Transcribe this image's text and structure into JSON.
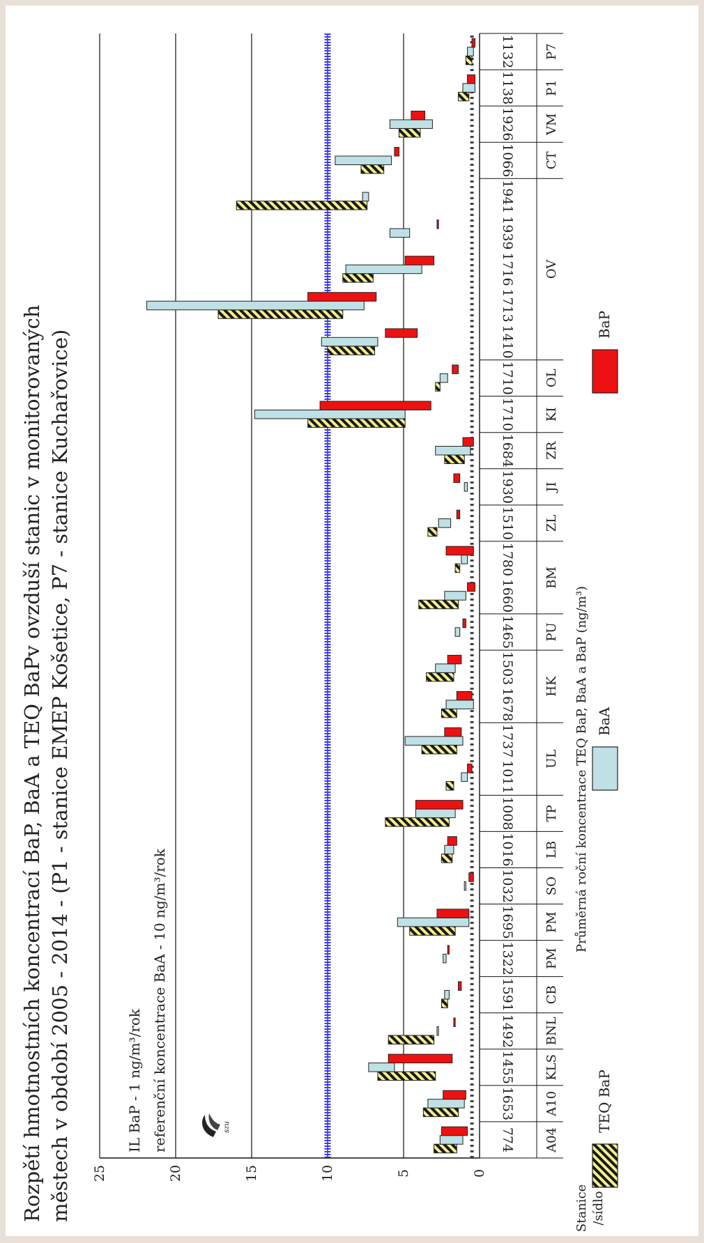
{
  "chart_data": {
    "type": "bar",
    "title_line1": "Rozpětí hmotnostních koncentrací BaP, BaA a TEQ BaPv ovzduší stanic v monitorovaných",
    "title_line2": "městech v období 2005 - 2014 - (P1 - stanice EMEP Košetice, P7 - stanice Kuchařovice)",
    "ylabel": "Průměrná roční koncentrace TEQ BaP, BaA a BaP (ng/m³)",
    "xlabel": "Stanice /sídlo",
    "xlabel_line1": "Stanice",
    "xlabel_line2": "/sídlo",
    "ylim": [
      0,
      25
    ],
    "y_ticks": [
      "0",
      "5",
      "10",
      "15",
      "20",
      "25"
    ],
    "grid": true,
    "annotations": {
      "il_bap": "IL BaP - 1  ng/m³/rok",
      "ref_baa": "referenční koncentrace BaA - 10 ng/m³/rok"
    },
    "reference_line_value": 10,
    "categories": [
      "774",
      "1653",
      "1455",
      "1492",
      "1591",
      "1322",
      "1695",
      "1032",
      "1016",
      "1008",
      "1011",
      "1737",
      "1678",
      "1503",
      "1465",
      "1660",
      "1780",
      "1510",
      "1930",
      "1684",
      "1710",
      "1710",
      "1410",
      "1713",
      "1716",
      "1939",
      "1941",
      "1066",
      "1926",
      "1138",
      "1132"
    ],
    "groups": [
      {
        "label": "A04",
        "from": 0,
        "to": 0
      },
      {
        "label": "A10",
        "from": 1,
        "to": 1
      },
      {
        "label": "KLS",
        "from": 2,
        "to": 2
      },
      {
        "label": "BNL",
        "from": 3,
        "to": 3
      },
      {
        "label": "CB",
        "from": 4,
        "to": 4
      },
      {
        "label": "PM",
        "from": 5,
        "to": 5
      },
      {
        "label": "PM",
        "from": 6,
        "to": 6
      },
      {
        "label": "SO",
        "from": 7,
        "to": 7
      },
      {
        "label": "LB",
        "from": 8,
        "to": 8
      },
      {
        "label": "TP",
        "from": 9,
        "to": 9
      },
      {
        "label": "UL",
        "from": 10,
        "to": 11
      },
      {
        "label": "HK",
        "from": 12,
        "to": 13
      },
      {
        "label": "PU",
        "from": 14,
        "to": 14
      },
      {
        "label": "BM",
        "from": 15,
        "to": 16
      },
      {
        "label": "ZL",
        "from": 17,
        "to": 17
      },
      {
        "label": "JI",
        "from": 18,
        "to": 18
      },
      {
        "label": "ZR",
        "from": 19,
        "to": 19
      },
      {
        "label": "KI",
        "from": 20,
        "to": 20
      },
      {
        "label": "OL",
        "from": 21,
        "to": 21
      },
      {
        "label": "OV",
        "from": 22,
        "to": 26
      },
      {
        "label": "CT",
        "from": 27,
        "to": 27
      },
      {
        "label": "VM",
        "from": 28,
        "to": 28
      },
      {
        "label": "P1",
        "from": 29,
        "to": 29
      },
      {
        "label": "P7",
        "from": 30,
        "to": 30
      }
    ],
    "series": [
      {
        "name": "TEQ BaP",
        "color": "#f5f08c",
        "pattern": "hatched",
        "ranges": [
          [
            1.5,
            3.0
          ],
          [
            1.4,
            3.7
          ],
          [
            2.9,
            6.7
          ],
          [
            3.0,
            6.0
          ],
          [
            2.1,
            2.5
          ],
          null,
          [
            1.6,
            4.6
          ],
          null,
          [
            1.8,
            2.5
          ],
          [
            2.0,
            6.2
          ],
          [
            1.7,
            2.2
          ],
          [
            1.5,
            3.8
          ],
          [
            1.5,
            2.5
          ],
          [
            1.7,
            3.5
          ],
          null,
          [
            1.4,
            4.0
          ],
          [
            1.3,
            1.6
          ],
          [
            2.8,
            3.4
          ],
          null,
          [
            1.0,
            2.3
          ],
          [
            4.9,
            11.3
          ],
          [
            2.6,
            2.9
          ],
          [
            6.9,
            10.0
          ],
          [
            9.0,
            17.2
          ],
          [
            7.0,
            9.0
          ],
          null,
          [
            7.4,
            16.0
          ],
          [
            6.3,
            7.8
          ],
          [
            3.9,
            5.3
          ],
          [
            0.7,
            1.4
          ],
          [
            0.5,
            0.9
          ]
        ]
      },
      {
        "name": "BaA",
        "color": "#bfe0e4",
        "pattern": "solid",
        "ranges": [
          [
            1.1,
            2.6
          ],
          [
            1.0,
            3.4
          ],
          [
            5.6,
            7.3
          ],
          [
            2.7,
            2.8
          ],
          [
            2.0,
            2.3
          ],
          [
            2.2,
            2.4
          ],
          [
            0.7,
            5.4
          ],
          [
            0.9,
            1.0
          ],
          [
            1.7,
            2.3
          ],
          [
            1.6,
            4.2
          ],
          [
            0.8,
            1.2
          ],
          [
            1.1,
            4.9
          ],
          [
            0.4,
            2.2
          ],
          [
            1.6,
            2.9
          ],
          [
            1.3,
            1.6
          ],
          [
            0.9,
            2.3
          ],
          [
            0.8,
            1.2
          ],
          [
            1.9,
            2.7
          ],
          [
            0.8,
            1.0
          ],
          [
            0.6,
            2.9
          ],
          [
            4.9,
            14.8
          ],
          [
            2.1,
            2.6
          ],
          [
            6.7,
            10.4
          ],
          [
            7.6,
            21.9
          ],
          [
            3.8,
            8.8
          ],
          [
            4.6,
            5.9
          ],
          [
            7.3,
            7.7
          ],
          [
            5.8,
            9.5
          ],
          [
            3.1,
            5.9
          ],
          [
            0.3,
            1.1
          ],
          [
            0.4,
            0.8
          ]
        ]
      },
      {
        "name": "BaP",
        "color": "#ee1111",
        "pattern": "solid",
        "ranges": [
          [
            0.8,
            2.5
          ],
          [
            0.9,
            2.4
          ],
          [
            1.8,
            6.0
          ],
          [
            1.6,
            1.7
          ],
          [
            1.2,
            1.4
          ],
          [
            2.0,
            2.1
          ],
          [
            0.7,
            2.8
          ],
          [
            0.4,
            0.7
          ],
          [
            1.5,
            2.1
          ],
          [
            1.1,
            4.2
          ],
          [
            0.5,
            0.8
          ],
          [
            1.2,
            2.3
          ],
          [
            0.5,
            1.5
          ],
          [
            1.2,
            2.1
          ],
          [
            0.9,
            1.1
          ],
          [
            0.3,
            0.8
          ],
          [
            0.4,
            2.2
          ],
          [
            1.3,
            1.5
          ],
          [
            1.3,
            1.7
          ],
          [
            0.4,
            1.1
          ],
          [
            3.2,
            10.5
          ],
          [
            1.4,
            1.8
          ],
          [
            4.1,
            6.2
          ],
          [
            6.8,
            11.3
          ],
          [
            3.0,
            4.9
          ],
          [
            2.7,
            2.8
          ],
          null,
          [
            5.3,
            5.6
          ],
          [
            3.6,
            4.5
          ],
          [
            0.3,
            0.8
          ],
          [
            0.3,
            0.5
          ]
        ]
      }
    ],
    "legend": [
      {
        "name": "TEQ BaP"
      },
      {
        "name": "BaA"
      },
      {
        "name": "BaP"
      }
    ]
  }
}
